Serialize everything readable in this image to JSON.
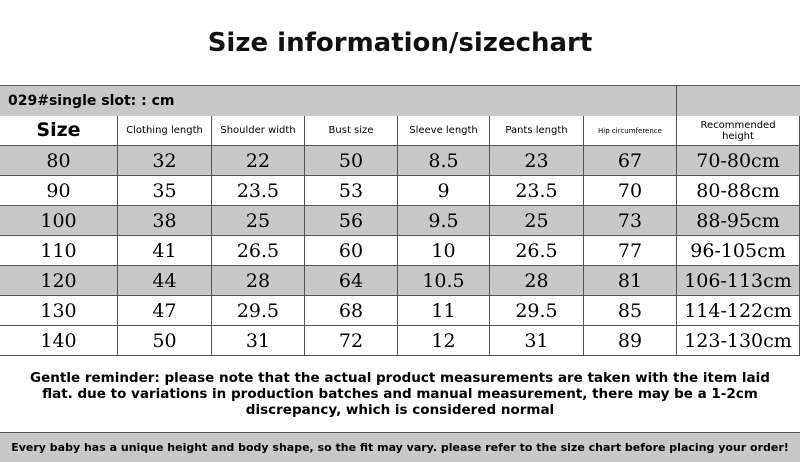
{
  "header": {
    "title": "Size information/sizechart"
  },
  "table": {
    "caption": "029#single slot: : cm",
    "columns": [
      "Size",
      "Clothing length",
      "Shoulder width",
      "Bust size",
      "Sleeve length",
      "Pants length",
      "Hip circumference",
      "Recommended height"
    ],
    "rows": [
      [
        80,
        32,
        22,
        50,
        8.5,
        23,
        67,
        "70-80cm"
      ],
      [
        90,
        35,
        23.5,
        53,
        9,
        23.5,
        70,
        "80-88cm"
      ],
      [
        100,
        38,
        25,
        56,
        9.5,
        25,
        73,
        "88-95cm"
      ],
      [
        110,
        41,
        26.5,
        60,
        10,
        26.5,
        77,
        "96-105cm"
      ],
      [
        120,
        44,
        28,
        64,
        10.5,
        28,
        81,
        "106-113cm"
      ],
      [
        130,
        47,
        29.5,
        68,
        11,
        29.5,
        85,
        "114-122cm"
      ],
      [
        140,
        50,
        31,
        72,
        12,
        31,
        89,
        "123-130cm"
      ]
    ]
  },
  "reminder": "Gentle reminder: please note that the actual product measurements are taken with the item laid flat. due to variations in production batches and manual measurement, there may be a 1-2cm discrepancy, which is considered normal",
  "footer": "Every baby has a unique height and body shape, so the fit may vary. please refer to the size chart before placing your order!"
}
